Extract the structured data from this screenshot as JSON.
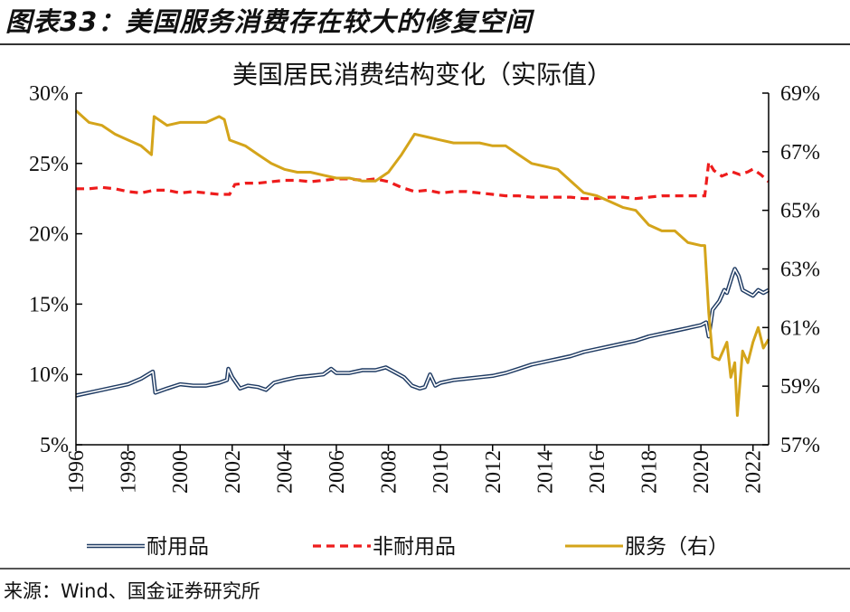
{
  "figure_title": "图表33：美国服务消费存在较大的修复空间",
  "source_note": "来源：Wind、国金证券研究所",
  "colors": {
    "durable": "#1f3b63",
    "nondurable": "#ee1c1c",
    "services": "#d4a41a"
  },
  "chart_data": {
    "type": "line",
    "title": "美国居民消费结构变化（实际值）",
    "x_range": [
      1996,
      2022.6
    ],
    "x_ticks": [
      "1996",
      "1998",
      "2000",
      "2002",
      "2004",
      "2006",
      "2008",
      "2010",
      "2012",
      "2014",
      "2016",
      "2018",
      "2020",
      "2022"
    ],
    "y_left": {
      "range": [
        5,
        30
      ],
      "ticks": [
        "5%",
        "10%",
        "15%",
        "20%",
        "25%",
        "30%"
      ]
    },
    "y_right": {
      "range": [
        57,
        69
      ],
      "ticks": [
        "57%",
        "59%",
        "61%",
        "63%",
        "65%",
        "67%",
        "69%"
      ]
    },
    "grid": false,
    "legend_position": "bottom",
    "series": [
      {
        "name": "耐用品",
        "axis": "left",
        "style": "double-line",
        "points": [
          [
            1996.0,
            8.5
          ],
          [
            1996.5,
            8.7
          ],
          [
            1997.0,
            8.9
          ],
          [
            1997.5,
            9.1
          ],
          [
            1998.0,
            9.3
          ],
          [
            1998.5,
            9.7
          ],
          [
            1998.95,
            10.2
          ],
          [
            1999.05,
            8.7
          ],
          [
            1999.5,
            9.0
          ],
          [
            2000.0,
            9.3
          ],
          [
            2000.5,
            9.2
          ],
          [
            2001.0,
            9.2
          ],
          [
            2001.5,
            9.4
          ],
          [
            2001.8,
            9.6
          ],
          [
            2001.85,
            10.4
          ],
          [
            2002.0,
            9.8
          ],
          [
            2002.3,
            9.0
          ],
          [
            2002.6,
            9.2
          ],
          [
            2003.0,
            9.1
          ],
          [
            2003.3,
            8.9
          ],
          [
            2003.6,
            9.4
          ],
          [
            2004.0,
            9.6
          ],
          [
            2004.5,
            9.8
          ],
          [
            2005.0,
            9.9
          ],
          [
            2005.5,
            10.0
          ],
          [
            2005.8,
            10.4
          ],
          [
            2006.0,
            10.1
          ],
          [
            2006.5,
            10.1
          ],
          [
            2007.0,
            10.3
          ],
          [
            2007.5,
            10.3
          ],
          [
            2007.9,
            10.5
          ],
          [
            2008.3,
            10.1
          ],
          [
            2008.6,
            9.8
          ],
          [
            2008.9,
            9.2
          ],
          [
            2009.2,
            9.0
          ],
          [
            2009.4,
            9.1
          ],
          [
            2009.6,
            10.0
          ],
          [
            2009.8,
            9.2
          ],
          [
            2010.0,
            9.4
          ],
          [
            2010.5,
            9.6
          ],
          [
            2011.0,
            9.7
          ],
          [
            2011.5,
            9.8
          ],
          [
            2012.0,
            9.9
          ],
          [
            2012.5,
            10.1
          ],
          [
            2013.0,
            10.4
          ],
          [
            2013.5,
            10.7
          ],
          [
            2014.0,
            10.9
          ],
          [
            2014.5,
            11.1
          ],
          [
            2015.0,
            11.3
          ],
          [
            2015.5,
            11.6
          ],
          [
            2016.0,
            11.8
          ],
          [
            2016.5,
            12.0
          ],
          [
            2017.0,
            12.2
          ],
          [
            2017.5,
            12.4
          ],
          [
            2018.0,
            12.7
          ],
          [
            2018.5,
            12.9
          ],
          [
            2019.0,
            13.1
          ],
          [
            2019.5,
            13.3
          ],
          [
            2020.0,
            13.5
          ],
          [
            2020.2,
            13.7
          ],
          [
            2020.3,
            12.7
          ],
          [
            2020.45,
            14.6
          ],
          [
            2020.7,
            15.2
          ],
          [
            2020.9,
            16.0
          ],
          [
            2021.0,
            15.8
          ],
          [
            2021.2,
            17.0
          ],
          [
            2021.3,
            17.5
          ],
          [
            2021.45,
            17.0
          ],
          [
            2021.6,
            16.0
          ],
          [
            2021.8,
            15.8
          ],
          [
            2022.0,
            15.6
          ],
          [
            2022.2,
            16.0
          ],
          [
            2022.4,
            15.8
          ],
          [
            2022.6,
            16.0
          ]
        ]
      },
      {
        "name": "非耐用品",
        "axis": "left",
        "style": "dashed",
        "points": [
          [
            1996.0,
            23.2
          ],
          [
            1996.5,
            23.2
          ],
          [
            1997.0,
            23.3
          ],
          [
            1997.5,
            23.2
          ],
          [
            1998.0,
            23.0
          ],
          [
            1998.5,
            22.9
          ],
          [
            1999.0,
            23.1
          ],
          [
            1999.5,
            23.1
          ],
          [
            2000.0,
            22.9
          ],
          [
            2000.5,
            23.0
          ],
          [
            2001.0,
            22.9
          ],
          [
            2001.5,
            22.8
          ],
          [
            2001.9,
            22.8
          ],
          [
            2002.1,
            23.5
          ],
          [
            2002.5,
            23.6
          ],
          [
            2003.0,
            23.6
          ],
          [
            2003.5,
            23.7
          ],
          [
            2004.0,
            23.8
          ],
          [
            2004.5,
            23.8
          ],
          [
            2005.0,
            23.7
          ],
          [
            2005.5,
            23.8
          ],
          [
            2006.0,
            23.9
          ],
          [
            2006.5,
            23.9
          ],
          [
            2007.0,
            23.8
          ],
          [
            2007.5,
            23.9
          ],
          [
            2008.0,
            23.7
          ],
          [
            2008.5,
            23.3
          ],
          [
            2009.0,
            23.0
          ],
          [
            2009.5,
            23.1
          ],
          [
            2010.0,
            22.9
          ],
          [
            2010.5,
            23.0
          ],
          [
            2011.0,
            23.0
          ],
          [
            2011.5,
            22.9
          ],
          [
            2012.0,
            22.8
          ],
          [
            2012.5,
            22.7
          ],
          [
            2013.0,
            22.7
          ],
          [
            2013.5,
            22.6
          ],
          [
            2014.0,
            22.6
          ],
          [
            2014.5,
            22.6
          ],
          [
            2015.0,
            22.6
          ],
          [
            2015.5,
            22.5
          ],
          [
            2016.0,
            22.5
          ],
          [
            2016.5,
            22.6
          ],
          [
            2017.0,
            22.6
          ],
          [
            2017.5,
            22.5
          ],
          [
            2018.0,
            22.6
          ],
          [
            2018.5,
            22.7
          ],
          [
            2019.0,
            22.7
          ],
          [
            2019.5,
            22.7
          ],
          [
            2020.0,
            22.7
          ],
          [
            2020.15,
            22.7
          ],
          [
            2020.3,
            25.1
          ],
          [
            2020.5,
            24.5
          ],
          [
            2020.8,
            24.1
          ],
          [
            2021.2,
            24.4
          ],
          [
            2021.5,
            24.2
          ],
          [
            2021.8,
            24.4
          ],
          [
            2022.0,
            24.6
          ],
          [
            2022.3,
            24.2
          ],
          [
            2022.6,
            23.7
          ]
        ]
      },
      {
        "name": "服务（右）",
        "axis": "right",
        "style": "solid",
        "points": [
          [
            1996.0,
            68.4
          ],
          [
            1996.5,
            68.0
          ],
          [
            1997.0,
            67.9
          ],
          [
            1997.5,
            67.6
          ],
          [
            1998.0,
            67.4
          ],
          [
            1998.5,
            67.2
          ],
          [
            1998.9,
            66.9
          ],
          [
            1999.0,
            68.2
          ],
          [
            1999.5,
            67.9
          ],
          [
            2000.0,
            68.0
          ],
          [
            2000.5,
            68.0
          ],
          [
            2001.0,
            68.0
          ],
          [
            2001.5,
            68.2
          ],
          [
            2001.7,
            68.1
          ],
          [
            2001.9,
            67.4
          ],
          [
            2002.5,
            67.2
          ],
          [
            2003.0,
            66.9
          ],
          [
            2003.5,
            66.6
          ],
          [
            2004.0,
            66.4
          ],
          [
            2004.5,
            66.3
          ],
          [
            2005.0,
            66.3
          ],
          [
            2005.5,
            66.2
          ],
          [
            2006.0,
            66.1
          ],
          [
            2006.5,
            66.1
          ],
          [
            2007.0,
            66.0
          ],
          [
            2007.5,
            66.0
          ],
          [
            2008.0,
            66.3
          ],
          [
            2008.5,
            66.9
          ],
          [
            2009.0,
            67.6
          ],
          [
            2009.5,
            67.5
          ],
          [
            2010.0,
            67.4
          ],
          [
            2010.5,
            67.3
          ],
          [
            2011.0,
            67.3
          ],
          [
            2011.5,
            67.3
          ],
          [
            2012.0,
            67.2
          ],
          [
            2012.5,
            67.2
          ],
          [
            2013.0,
            66.9
          ],
          [
            2013.5,
            66.6
          ],
          [
            2014.0,
            66.5
          ],
          [
            2014.5,
            66.4
          ],
          [
            2015.0,
            66.0
          ],
          [
            2015.5,
            65.6
          ],
          [
            2016.0,
            65.5
          ],
          [
            2016.5,
            65.3
          ],
          [
            2017.0,
            65.1
          ],
          [
            2017.5,
            65.0
          ],
          [
            2018.0,
            64.5
          ],
          [
            2018.5,
            64.3
          ],
          [
            2019.0,
            64.3
          ],
          [
            2019.5,
            63.9
          ],
          [
            2020.0,
            63.8
          ],
          [
            2020.15,
            63.8
          ],
          [
            2020.3,
            61.5
          ],
          [
            2020.45,
            60.0
          ],
          [
            2020.7,
            59.9
          ],
          [
            2021.0,
            60.5
          ],
          [
            2021.15,
            59.3
          ],
          [
            2021.3,
            59.8
          ],
          [
            2021.4,
            58.0
          ],
          [
            2021.6,
            60.2
          ],
          [
            2021.8,
            59.8
          ],
          [
            2022.0,
            60.5
          ],
          [
            2022.2,
            61.0
          ],
          [
            2022.4,
            60.3
          ],
          [
            2022.6,
            60.6
          ]
        ]
      }
    ]
  }
}
